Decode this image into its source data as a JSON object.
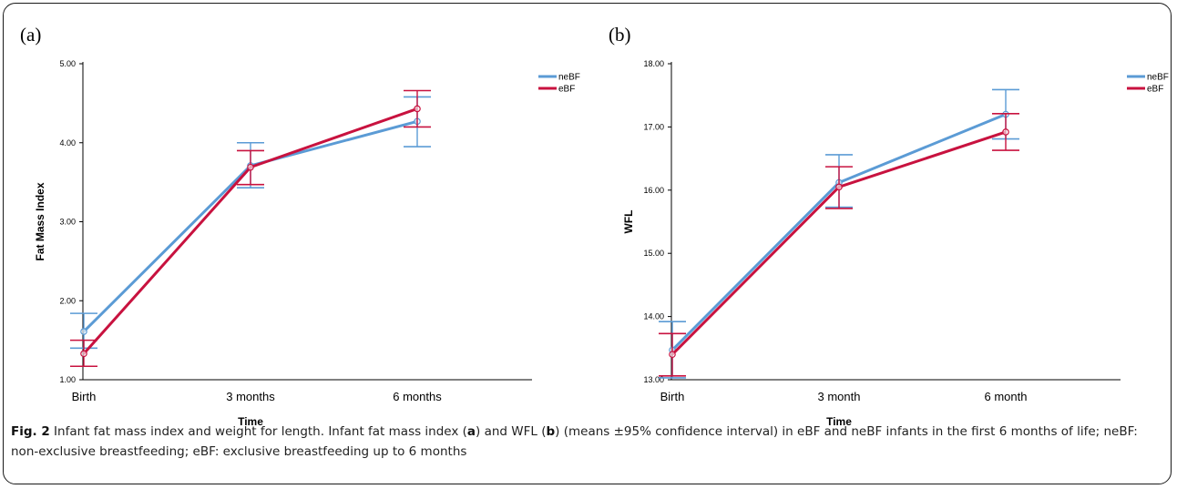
{
  "chart_data": [
    {
      "type": "line",
      "panel_label": "(a)",
      "title": "",
      "xlabel": "Time",
      "ylabel": "Fat Mass Index",
      "categories": [
        "Birth",
        "3 months",
        "6 months"
      ],
      "yticks": [
        "1.00",
        "2.00",
        "3.00",
        "4.00",
        "5.00"
      ],
      "ylim": [
        1.0,
        5.0
      ],
      "grid": false,
      "legend_position": "top-right",
      "error_bars": "95% confidence interval",
      "series": [
        {
          "name": "neBF",
          "color": "#5b9bd5",
          "values": [
            1.61,
            3.71,
            4.27
          ],
          "ci_low": [
            1.4,
            3.43,
            3.95
          ],
          "ci_high": [
            1.84,
            4.0,
            4.58
          ]
        },
        {
          "name": "eBF",
          "color": "#c8123f",
          "values": [
            1.33,
            3.69,
            4.43
          ],
          "ci_low": [
            1.17,
            3.47,
            4.2
          ],
          "ci_high": [
            1.5,
            3.9,
            4.66
          ]
        }
      ]
    },
    {
      "type": "line",
      "panel_label": "(b)",
      "title": "",
      "xlabel": "Time",
      "ylabel": "WFL",
      "categories": [
        "Birth",
        "3 month",
        "6 month"
      ],
      "yticks": [
        "13.00",
        "14.00",
        "15.00",
        "16.00",
        "17.00",
        "18.00"
      ],
      "ylim": [
        13.0,
        18.0
      ],
      "grid": false,
      "legend_position": "top-right",
      "error_bars": "95% confidence interval",
      "series": [
        {
          "name": "neBF",
          "color": "#5b9bd5",
          "values": [
            13.47,
            16.12,
            17.2
          ],
          "ci_low": [
            13.03,
            15.73,
            16.81
          ],
          "ci_high": [
            13.92,
            16.56,
            17.59
          ]
        },
        {
          "name": "eBF",
          "color": "#c8123f",
          "values": [
            13.4,
            16.05,
            16.92
          ],
          "ci_low": [
            13.06,
            15.71,
            16.63
          ],
          "ci_high": [
            13.73,
            16.37,
            17.21
          ]
        }
      ]
    }
  ],
  "caption": {
    "fig_label": "Fig. 2",
    "t1": " Infant fat mass index and weight for length. Infant fat mass index (",
    "ref_a": "a",
    "t2": ") and WFL (",
    "ref_b": "b",
    "t3": ") (means ±95% confidence interval) in eBF and neBF infants in the first 6 months of life; neBF: non-exclusive breastfeeding; eBF: exclusive breastfeeding up to 6 months"
  }
}
